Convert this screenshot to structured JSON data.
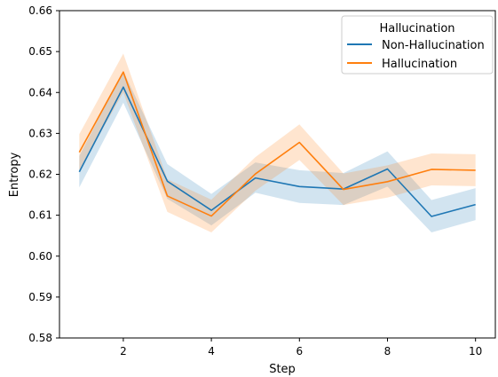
{
  "chart_data": {
    "type": "line",
    "xlabel": "Step",
    "ylabel": "Entropy",
    "xlim": [
      0.55,
      10.45
    ],
    "ylim": [
      0.58,
      0.66
    ],
    "xticks": [
      2,
      4,
      6,
      8,
      10
    ],
    "yticks": [
      0.58,
      0.59,
      0.6,
      0.61,
      0.62,
      0.63,
      0.64,
      0.65,
      0.66
    ],
    "ytick_labels": [
      "0.58",
      "0.59",
      "0.60",
      "0.61",
      "0.62",
      "0.63",
      "0.64",
      "0.65",
      "0.66"
    ],
    "grid": false,
    "legend": {
      "title": "Hallucination",
      "placement": "top-right"
    },
    "x": [
      1,
      2,
      3,
      4,
      5,
      6,
      7,
      8,
      9,
      10
    ],
    "series": [
      {
        "name": "Non-Hallucination",
        "color": "#1f77b4",
        "values": [
          0.6206,
          0.6413,
          0.6183,
          0.6112,
          0.6191,
          0.617,
          0.6164,
          0.6213,
          0.6097,
          0.6126
        ],
        "lower": [
          0.6168,
          0.6375,
          0.614,
          0.6075,
          0.6155,
          0.613,
          0.6125,
          0.617,
          0.6058,
          0.6088
        ],
        "upper": [
          0.6245,
          0.6452,
          0.6225,
          0.6152,
          0.6229,
          0.621,
          0.6203,
          0.6256,
          0.6137,
          0.6166
        ]
      },
      {
        "name": "Hallucination",
        "color": "#ff7f0e",
        "values": [
          0.6254,
          0.645,
          0.6147,
          0.6098,
          0.6201,
          0.6278,
          0.6163,
          0.6182,
          0.6212,
          0.621
        ],
        "lower": [
          0.621,
          0.64,
          0.6108,
          0.6058,
          0.616,
          0.6235,
          0.6125,
          0.6143,
          0.6173,
          0.6171
        ],
        "upper": [
          0.6298,
          0.6495,
          0.6188,
          0.6138,
          0.6242,
          0.6322,
          0.6202,
          0.6222,
          0.6251,
          0.6249
        ]
      }
    ]
  }
}
